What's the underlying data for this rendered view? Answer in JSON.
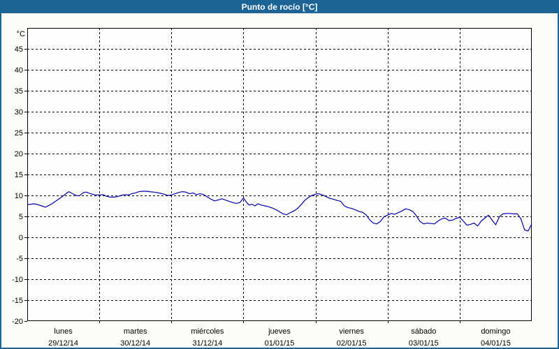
{
  "window_title": "Punto de rocío [°C]",
  "colors": {
    "frame": "#1c6396",
    "title_text": "#ffffff",
    "background": "#fcfdf9",
    "plot_background": "#fefefc",
    "grid": "#000000",
    "axis": "#000000",
    "line": "#0000b0",
    "label_text": "#000000"
  },
  "chart_data": {
    "type": "line",
    "title": "Punto de rocío [°C]",
    "ylabel": "°C",
    "ylim": [
      -20,
      50
    ],
    "y_ticks": [
      45,
      40,
      35,
      30,
      25,
      20,
      15,
      10,
      5,
      0,
      -5,
      -10,
      -15,
      -20
    ],
    "grid": "dashed",
    "legend": "none",
    "x_days": [
      {
        "name": "lunes",
        "date": "29/12/14"
      },
      {
        "name": "martes",
        "date": "30/12/14"
      },
      {
        "name": "miércoles",
        "date": "31/12/14"
      },
      {
        "name": "jueves",
        "date": "01/01/15"
      },
      {
        "name": "viernes",
        "date": "02/01/15"
      },
      {
        "name": "sábado",
        "date": "03/01/15"
      },
      {
        "name": "domingo",
        "date": "04/01/15"
      }
    ],
    "series": [
      {
        "name": "Punto de rocío [°C]",
        "color": "#0000b0",
        "x_unit": "days_from_start",
        "points": [
          [
            0.0,
            7.8
          ],
          [
            0.05,
            7.9
          ],
          [
            0.1,
            8.0
          ],
          [
            0.15,
            7.8
          ],
          [
            0.2,
            7.5
          ],
          [
            0.25,
            7.2
          ],
          [
            0.3,
            7.6
          ],
          [
            0.35,
            8.1
          ],
          [
            0.4,
            8.7
          ],
          [
            0.45,
            9.3
          ],
          [
            0.5,
            9.9
          ],
          [
            0.55,
            10.6
          ],
          [
            0.58,
            10.9
          ],
          [
            0.62,
            10.5
          ],
          [
            0.68,
            10.0
          ],
          [
            0.72,
            9.9
          ],
          [
            0.78,
            10.7
          ],
          [
            0.82,
            10.8
          ],
          [
            0.88,
            10.4
          ],
          [
            0.95,
            10.1
          ],
          [
            1.0,
            10.1
          ],
          [
            1.05,
            10.2
          ],
          [
            1.1,
            9.8
          ],
          [
            1.15,
            9.6
          ],
          [
            1.2,
            9.6
          ],
          [
            1.25,
            9.7
          ],
          [
            1.3,
            10.0
          ],
          [
            1.35,
            10.2
          ],
          [
            1.4,
            10.1
          ],
          [
            1.45,
            10.4
          ],
          [
            1.5,
            10.6
          ],
          [
            1.55,
            10.9
          ],
          [
            1.6,
            11.0
          ],
          [
            1.65,
            11.0
          ],
          [
            1.7,
            10.9
          ],
          [
            1.75,
            10.8
          ],
          [
            1.8,
            10.7
          ],
          [
            1.85,
            10.5
          ],
          [
            1.9,
            10.3
          ],
          [
            1.95,
            10.0
          ],
          [
            2.0,
            10.1
          ],
          [
            2.05,
            10.4
          ],
          [
            2.1,
            10.7
          ],
          [
            2.15,
            10.9
          ],
          [
            2.2,
            10.8
          ],
          [
            2.25,
            10.4
          ],
          [
            2.3,
            10.6
          ],
          [
            2.35,
            10.2
          ],
          [
            2.4,
            10.4
          ],
          [
            2.45,
            10.2
          ],
          [
            2.5,
            9.6
          ],
          [
            2.55,
            9.1
          ],
          [
            2.6,
            8.7
          ],
          [
            2.65,
            8.9
          ],
          [
            2.7,
            9.2
          ],
          [
            2.75,
            8.9
          ],
          [
            2.8,
            8.6
          ],
          [
            2.85,
            8.3
          ],
          [
            2.9,
            8.1
          ],
          [
            2.95,
            8.3
          ],
          [
            3.0,
            9.4
          ],
          [
            3.05,
            8.2
          ],
          [
            3.08,
            7.7
          ],
          [
            3.12,
            7.9
          ],
          [
            3.16,
            7.5
          ],
          [
            3.2,
            8.0
          ],
          [
            3.25,
            7.7
          ],
          [
            3.3,
            7.5
          ],
          [
            3.35,
            7.3
          ],
          [
            3.4,
            7.0
          ],
          [
            3.45,
            6.6
          ],
          [
            3.5,
            6.1
          ],
          [
            3.55,
            5.6
          ],
          [
            3.6,
            5.4
          ],
          [
            3.65,
            5.9
          ],
          [
            3.7,
            6.3
          ],
          [
            3.75,
            6.9
          ],
          [
            3.8,
            7.8
          ],
          [
            3.85,
            8.8
          ],
          [
            3.9,
            9.5
          ],
          [
            3.95,
            10.0
          ],
          [
            4.0,
            10.3
          ],
          [
            4.05,
            10.4
          ],
          [
            4.1,
            10.1
          ],
          [
            4.15,
            9.7
          ],
          [
            4.2,
            9.3
          ],
          [
            4.25,
            9.1
          ],
          [
            4.3,
            8.8
          ],
          [
            4.35,
            8.6
          ],
          [
            4.4,
            7.5
          ],
          [
            4.45,
            7.1
          ],
          [
            4.5,
            6.9
          ],
          [
            4.55,
            6.6
          ],
          [
            4.6,
            6.2
          ],
          [
            4.65,
            6.0
          ],
          [
            4.7,
            5.4
          ],
          [
            4.75,
            4.2
          ],
          [
            4.8,
            3.4
          ],
          [
            4.85,
            3.2
          ],
          [
            4.9,
            3.8
          ],
          [
            4.95,
            4.9
          ],
          [
            5.0,
            5.3
          ],
          [
            5.05,
            5.7
          ],
          [
            5.1,
            5.5
          ],
          [
            5.15,
            5.9
          ],
          [
            5.2,
            6.3
          ],
          [
            5.25,
            6.8
          ],
          [
            5.3,
            6.6
          ],
          [
            5.35,
            6.2
          ],
          [
            5.4,
            5.1
          ],
          [
            5.45,
            3.8
          ],
          [
            5.5,
            3.2
          ],
          [
            5.55,
            3.4
          ],
          [
            5.6,
            3.3
          ],
          [
            5.65,
            3.2
          ],
          [
            5.7,
            3.9
          ],
          [
            5.75,
            4.4
          ],
          [
            5.8,
            4.6
          ],
          [
            5.85,
            4.0
          ],
          [
            5.9,
            4.1
          ],
          [
            5.95,
            4.5
          ],
          [
            6.0,
            4.8
          ],
          [
            6.05,
            3.9
          ],
          [
            6.1,
            2.9
          ],
          [
            6.15,
            3.1
          ],
          [
            6.2,
            3.4
          ],
          [
            6.25,
            2.7
          ],
          [
            6.3,
            3.9
          ],
          [
            6.35,
            4.6
          ],
          [
            6.4,
            5.3
          ],
          [
            6.45,
            4.1
          ],
          [
            6.5,
            3.0
          ],
          [
            6.55,
            4.9
          ],
          [
            6.6,
            5.6
          ],
          [
            6.65,
            5.7
          ],
          [
            6.7,
            5.7
          ],
          [
            6.75,
            5.6
          ],
          [
            6.8,
            5.6
          ],
          [
            6.85,
            4.4
          ],
          [
            6.9,
            1.8
          ],
          [
            6.95,
            1.5
          ],
          [
            7.0,
            3.2
          ]
        ]
      }
    ]
  }
}
